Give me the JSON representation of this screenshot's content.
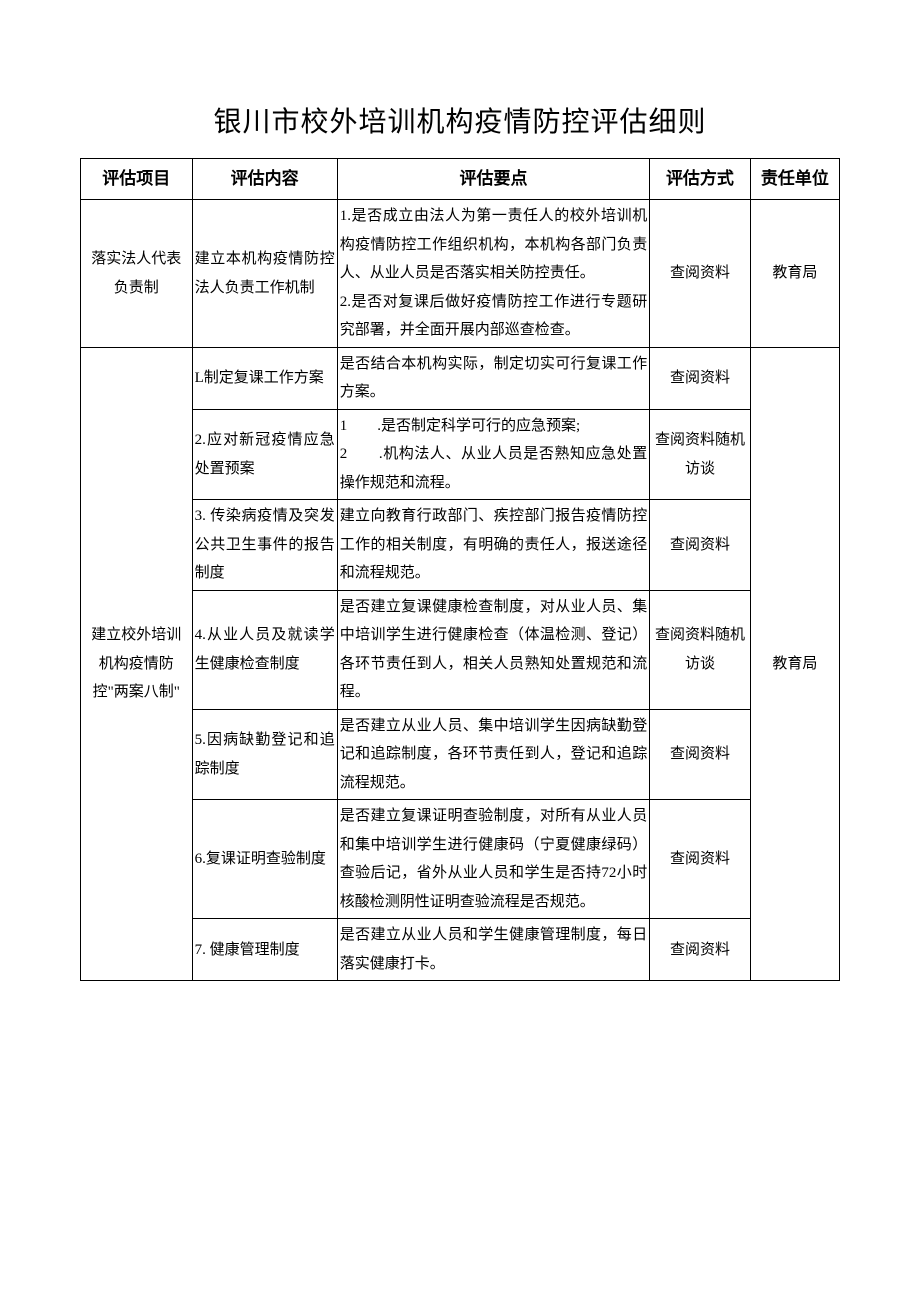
{
  "title": "银川市校外培训机构疫情防控评估细则",
  "headers": {
    "project": "评估项目",
    "content": "评估内容",
    "points": "评估要点",
    "method": "评估方式",
    "dept": "责任单位"
  },
  "section1": {
    "project": "落实法人代表负责制",
    "content": "建立本机构疫情防控法人负责工作机制",
    "points": "1.是否成立由法人为第一责任人的校外培训机构疫情防控工作组织机构，本机构各部门负责人、从业人员是否落实相关防控责任。\n2.是否对复课后做好疫情防控工作进行专题研究部署，并全面开展内部巡查检查。",
    "method": "查阅资料",
    "dept": "教育局"
  },
  "section2": {
    "project": "建立校外培训机构疫情防控\"两案八制\"",
    "dept": "教育局",
    "rows": [
      {
        "content": "L制定复课工作方案",
        "points": "是否结合本机构实际，制定切实可行复课工作方案。",
        "method": "查阅资料"
      },
      {
        "content": "2.应对新冠疫情应急处置预案",
        "points": "1　　.是否制定科学可行的应急预案;\n2　　.机构法人、从业人员是否熟知应急处置操作规范和流程。",
        "method": "查阅资料随机访谈"
      },
      {
        "content": "3. 传染病疫情及突发公共卫生事件的报告制度",
        "points": "建立向教育行政部门、疾控部门报告疫情防控工作的相关制度，有明确的责任人，报送途径和流程规范。",
        "method": "查阅资料"
      },
      {
        "content": "4.从业人员及就读学生健康检查制度",
        "points": "是否建立复课健康检查制度，对从业人员、集中培训学生进行健康检查（体温检测、登记）各环节责任到人，相关人员熟知处置规范和流程。",
        "method": "查阅资料随机访谈"
      },
      {
        "content": "5.因病缺勤登记和追踪制度",
        "points": "是否建立从业人员、集中培训学生因病缺勤登记和追踪制度，各环节责任到人，登记和追踪流程规范。",
        "method": "查阅资料"
      },
      {
        "content": "6.复课证明查验制度",
        "points": "是否建立复课证明查验制度，对所有从业人员和集中培训学生进行健康码（宁夏健康绿码）查验后记，省外从业人员和学生是否持72小时核酸检测阴性证明查验流程是否规范。",
        "method": "查阅资料"
      },
      {
        "content": "7. 健康管理制度",
        "points": "是否建立从业人员和学生健康管理制度，每日落实健康打卡。",
        "method": "查阅资料"
      }
    ]
  }
}
